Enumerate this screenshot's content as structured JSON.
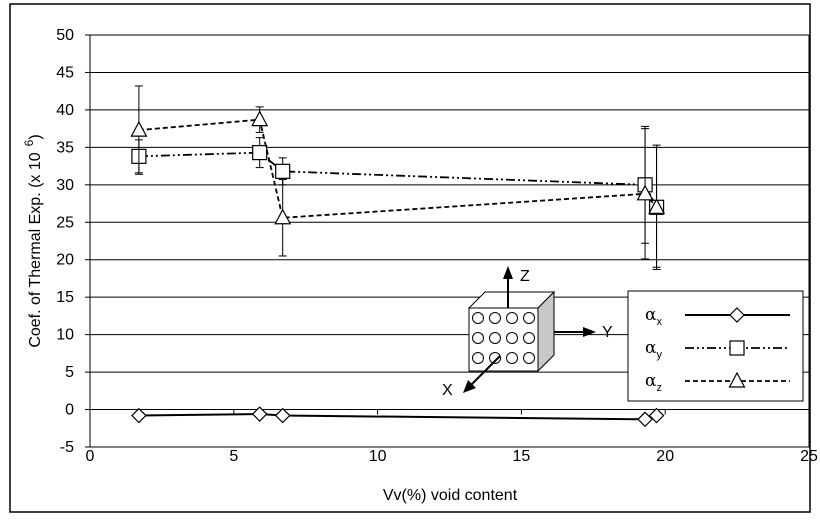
{
  "chart_data": {
    "type": "line",
    "title": "",
    "xlabel": "Vv(%) void content",
    "ylabel_main": "Coef. of Thermal Exp. (x 10",
    "ylabel_sup": "6",
    "ylabel_close": ")",
    "xlim": [
      0,
      25
    ],
    "ylim": [
      -5,
      50
    ],
    "xticks": [
      "0",
      "5",
      "10",
      "15",
      "20",
      "25"
    ],
    "yticks": [
      "-5",
      "0",
      "5",
      "10",
      "15",
      "20",
      "25",
      "30",
      "35",
      "40",
      "45",
      "50"
    ],
    "grid": "horizontal",
    "legend_position": "bottom-right",
    "series": [
      {
        "name": "α",
        "sub": "x",
        "marker": "diamond",
        "line": "solid",
        "x": [
          1.7,
          5.9,
          6.7,
          19.3,
          19.7
        ],
        "y": [
          -0.8,
          -0.6,
          -0.8,
          -1.3,
          -0.8
        ],
        "err": [
          0,
          0,
          0,
          0,
          0
        ]
      },
      {
        "name": "α",
        "sub": "y",
        "marker": "square",
        "line": "dashdotdot",
        "x": [
          1.7,
          5.9,
          6.7,
          19.3,
          19.7
        ],
        "y": [
          33.8,
          34.3,
          31.8,
          30.0,
          27.0
        ],
        "err": [
          2.2,
          2.0,
          1.8,
          7.8,
          8.3
        ]
      },
      {
        "name": "α",
        "sub": "z",
        "marker": "triangle",
        "line": "dashed",
        "x": [
          1.7,
          5.9,
          6.7,
          19.3,
          19.7
        ],
        "y": [
          37.3,
          38.7,
          25.6,
          28.8,
          27.0
        ],
        "err": [
          5.9,
          1.7,
          5.1,
          8.7,
          8.0
        ]
      }
    ],
    "inset": {
      "axis_labels": {
        "z": "Z",
        "y": "Y",
        "x": "X"
      }
    }
  }
}
